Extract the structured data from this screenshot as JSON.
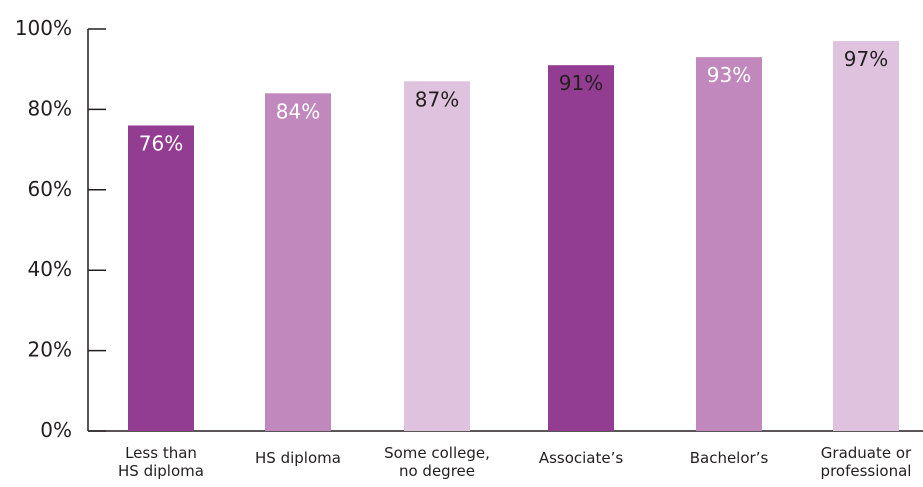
{
  "chart_data": {
    "type": "bar",
    "categories": [
      [
        "Less than",
        "HS diploma"
      ],
      [
        "HS diploma"
      ],
      [
        "Some college,",
        "no degree"
      ],
      [
        "Associate’s"
      ],
      [
        "Bachelor’s"
      ],
      [
        "Graduate or",
        "professional"
      ]
    ],
    "values": [
      76,
      84,
      87,
      91,
      93,
      97
    ],
    "data_labels": [
      "76%",
      "84%",
      "87%",
      "91%",
      "93%",
      "97%"
    ],
    "bar_colors": [
      "#923d91",
      "#c088bd",
      "#dfc3de",
      "#923d91",
      "#c088bd",
      "#dfc3de"
    ],
    "label_colors": [
      "#ffffff",
      "#ffffff",
      "#231f20",
      "#231f20",
      "#ffffff",
      "#231f20"
    ],
    "y_ticks": [
      0,
      20,
      40,
      60,
      80,
      100
    ],
    "y_tick_labels": [
      "0%",
      "20%",
      "40%",
      "60%",
      "80%",
      "100%"
    ],
    "ylim": [
      0,
      100
    ],
    "grid": false,
    "title": "",
    "xlabel": "",
    "ylabel": ""
  }
}
